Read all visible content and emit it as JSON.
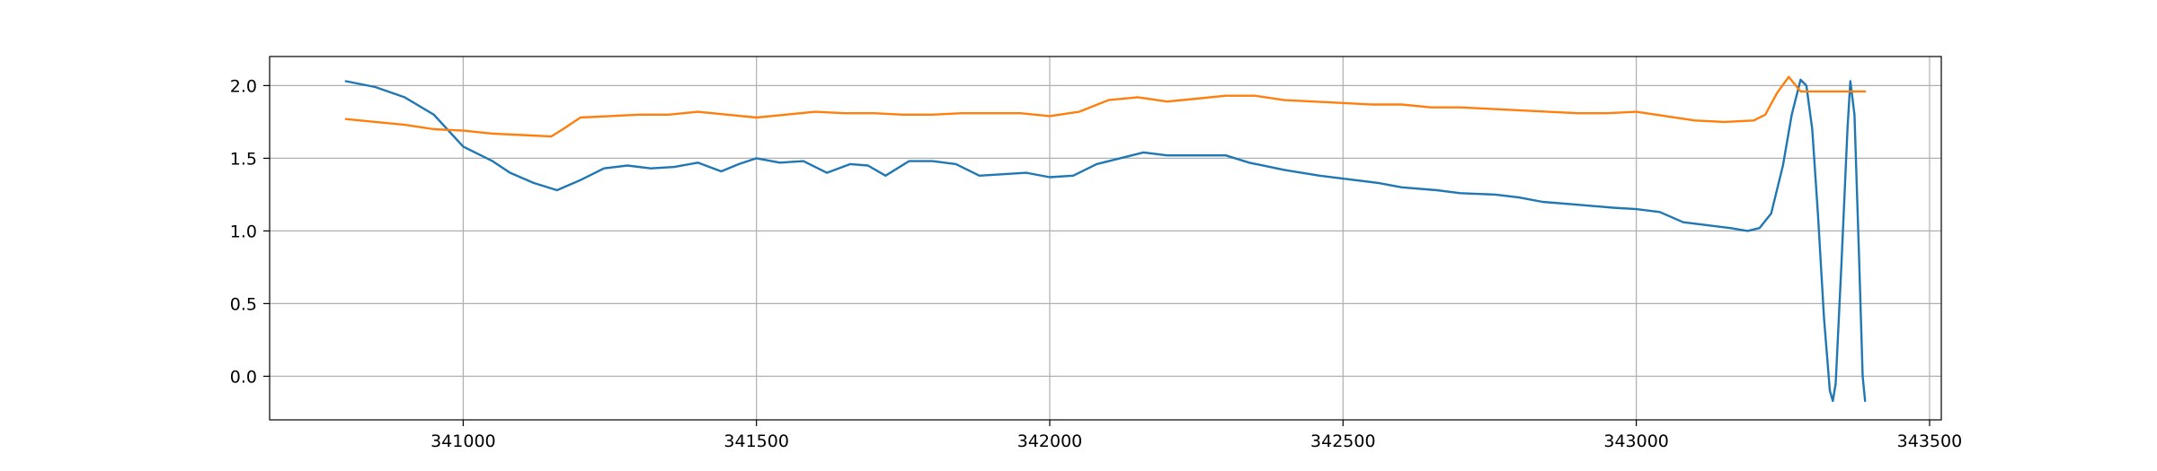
{
  "chart_data": {
    "type": "line",
    "title": "",
    "xlabel": "",
    "ylabel": "",
    "xlim": [
      340670,
      343520
    ],
    "ylim": [
      -0.3,
      2.2
    ],
    "grid": true,
    "legend": "none",
    "x_ticks": [
      341000,
      341500,
      342000,
      342500,
      343000,
      343500
    ],
    "y_ticks": [
      0.0,
      0.5,
      1.0,
      1.5,
      2.0
    ],
    "x_tick_labels": [
      "341000",
      "341500",
      "342000",
      "342500",
      "343000",
      "343500"
    ],
    "y_tick_labels": [
      "0.0",
      "0.5",
      "1.0",
      "1.5",
      "2.0"
    ],
    "series": [
      {
        "color": "#1f77b4",
        "points": [
          [
            340800,
            2.03
          ],
          [
            340850,
            1.99
          ],
          [
            340900,
            1.92
          ],
          [
            340950,
            1.8
          ],
          [
            341000,
            1.58
          ],
          [
            341050,
            1.48
          ],
          [
            341080,
            1.4
          ],
          [
            341120,
            1.33
          ],
          [
            341160,
            1.28
          ],
          [
            341200,
            1.35
          ],
          [
            341240,
            1.43
          ],
          [
            341280,
            1.45
          ],
          [
            341320,
            1.43
          ],
          [
            341360,
            1.44
          ],
          [
            341400,
            1.47
          ],
          [
            341440,
            1.41
          ],
          [
            341470,
            1.46
          ],
          [
            341500,
            1.5
          ],
          [
            341540,
            1.47
          ],
          [
            341580,
            1.48
          ],
          [
            341620,
            1.4
          ],
          [
            341660,
            1.46
          ],
          [
            341690,
            1.45
          ],
          [
            341720,
            1.38
          ],
          [
            341760,
            1.48
          ],
          [
            341800,
            1.48
          ],
          [
            341840,
            1.46
          ],
          [
            341880,
            1.38
          ],
          [
            341920,
            1.39
          ],
          [
            341960,
            1.4
          ],
          [
            342000,
            1.37
          ],
          [
            342040,
            1.38
          ],
          [
            342080,
            1.46
          ],
          [
            342120,
            1.5
          ],
          [
            342160,
            1.54
          ],
          [
            342200,
            1.52
          ],
          [
            342260,
            1.52
          ],
          [
            342300,
            1.52
          ],
          [
            342340,
            1.47
          ],
          [
            342400,
            1.42
          ],
          [
            342460,
            1.38
          ],
          [
            342500,
            1.36
          ],
          [
            342560,
            1.33
          ],
          [
            342600,
            1.3
          ],
          [
            342660,
            1.28
          ],
          [
            342700,
            1.26
          ],
          [
            342760,
            1.25
          ],
          [
            342800,
            1.23
          ],
          [
            342840,
            1.2
          ],
          [
            342900,
            1.18
          ],
          [
            342960,
            1.16
          ],
          [
            343000,
            1.15
          ],
          [
            343040,
            1.13
          ],
          [
            343080,
            1.06
          ],
          [
            343120,
            1.04
          ],
          [
            343160,
            1.02
          ],
          [
            343190,
            1.0
          ],
          [
            343210,
            1.02
          ],
          [
            343230,
            1.12
          ],
          [
            343250,
            1.45
          ],
          [
            343265,
            1.8
          ],
          [
            343280,
            2.04
          ],
          [
            343290,
            2.0
          ],
          [
            343300,
            1.7
          ],
          [
            343310,
            1.1
          ],
          [
            343320,
            0.4
          ],
          [
            343330,
            -0.1
          ],
          [
            343335,
            -0.17
          ],
          [
            343340,
            -0.05
          ],
          [
            343350,
            0.8
          ],
          [
            343360,
            1.7
          ],
          [
            343365,
            2.03
          ],
          [
            343372,
            1.8
          ],
          [
            343380,
            0.8
          ],
          [
            343386,
            0.0
          ],
          [
            343390,
            -0.17
          ]
        ]
      },
      {
        "color": "#ff7f0e",
        "points": [
          [
            340800,
            1.77
          ],
          [
            340850,
            1.75
          ],
          [
            340900,
            1.73
          ],
          [
            340950,
            1.7
          ],
          [
            341000,
            1.69
          ],
          [
            341050,
            1.67
          ],
          [
            341100,
            1.66
          ],
          [
            341150,
            1.65
          ],
          [
            341170,
            1.7
          ],
          [
            341200,
            1.78
          ],
          [
            341250,
            1.79
          ],
          [
            341300,
            1.8
          ],
          [
            341350,
            1.8
          ],
          [
            341400,
            1.82
          ],
          [
            341450,
            1.8
          ],
          [
            341500,
            1.78
          ],
          [
            341550,
            1.8
          ],
          [
            341600,
            1.82
          ],
          [
            341650,
            1.81
          ],
          [
            341700,
            1.81
          ],
          [
            341750,
            1.8
          ],
          [
            341800,
            1.8
          ],
          [
            341850,
            1.81
          ],
          [
            341900,
            1.81
          ],
          [
            341950,
            1.81
          ],
          [
            342000,
            1.79
          ],
          [
            342050,
            1.82
          ],
          [
            342100,
            1.9
          ],
          [
            342150,
            1.92
          ],
          [
            342200,
            1.89
          ],
          [
            342250,
            1.91
          ],
          [
            342300,
            1.93
          ],
          [
            342350,
            1.93
          ],
          [
            342400,
            1.9
          ],
          [
            342450,
            1.89
          ],
          [
            342500,
            1.88
          ],
          [
            342550,
            1.87
          ],
          [
            342600,
            1.87
          ],
          [
            342650,
            1.85
          ],
          [
            342700,
            1.85
          ],
          [
            342750,
            1.84
          ],
          [
            342800,
            1.83
          ],
          [
            342850,
            1.82
          ],
          [
            342900,
            1.81
          ],
          [
            342950,
            1.81
          ],
          [
            343000,
            1.82
          ],
          [
            343050,
            1.79
          ],
          [
            343100,
            1.76
          ],
          [
            343150,
            1.75
          ],
          [
            343200,
            1.76
          ],
          [
            343220,
            1.8
          ],
          [
            343240,
            1.95
          ],
          [
            343260,
            2.06
          ],
          [
            343280,
            1.96
          ],
          [
            343300,
            1.96
          ],
          [
            343340,
            1.96
          ],
          [
            343390,
            1.96
          ]
        ]
      }
    ]
  }
}
